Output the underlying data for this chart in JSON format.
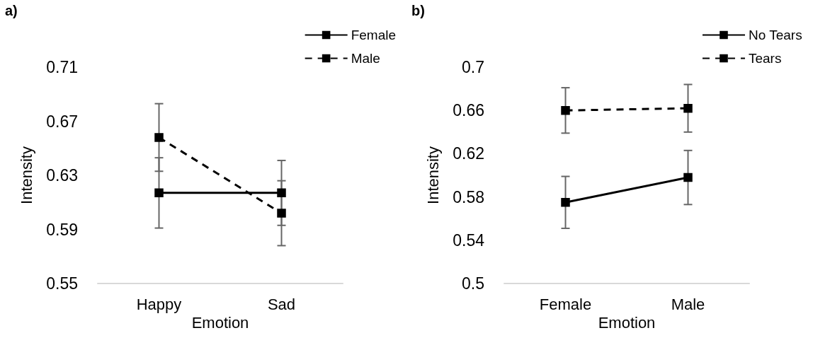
{
  "chart_data": [
    {
      "type": "line",
      "title": "a)",
      "xlabel": "Emotion",
      "ylabel": "Intensity",
      "categories": [
        "Happy",
        "Sad"
      ],
      "ylim": [
        0.55,
        0.71
      ],
      "yticks": [
        0.55,
        0.59,
        0.63,
        0.67,
        0.71
      ],
      "grid": false,
      "legend": "top right",
      "marker": "square",
      "series": [
        {
          "name": "Female",
          "color": "#000000",
          "line_style": "solid",
          "values": [
            0.617,
            0.617
          ],
          "errors": [
            0.026,
            0.024
          ]
        },
        {
          "name": "Male",
          "color": "#000000",
          "line_style": "dashed",
          "values": [
            0.658,
            0.602
          ],
          "errors": [
            0.025,
            0.024
          ]
        }
      ]
    },
    {
      "type": "line",
      "title": "b)",
      "xlabel": "Emotion",
      "ylabel": "Intensity",
      "categories": [
        "Female",
        "Male"
      ],
      "ylim": [
        0.5,
        0.7
      ],
      "yticks": [
        0.5,
        0.54,
        0.58,
        0.62,
        0.66,
        0.7
      ],
      "grid": false,
      "legend": "top right",
      "marker": "square",
      "series": [
        {
          "name": "No Tears",
          "color": "#000000",
          "line_style": "solid",
          "values": [
            0.575,
            0.598
          ],
          "errors": [
            0.024,
            0.025
          ]
        },
        {
          "name": "Tears",
          "color": "#000000",
          "line_style": "dashed",
          "values": [
            0.66,
            0.662
          ],
          "errors": [
            0.021,
            0.022
          ]
        }
      ]
    }
  ]
}
